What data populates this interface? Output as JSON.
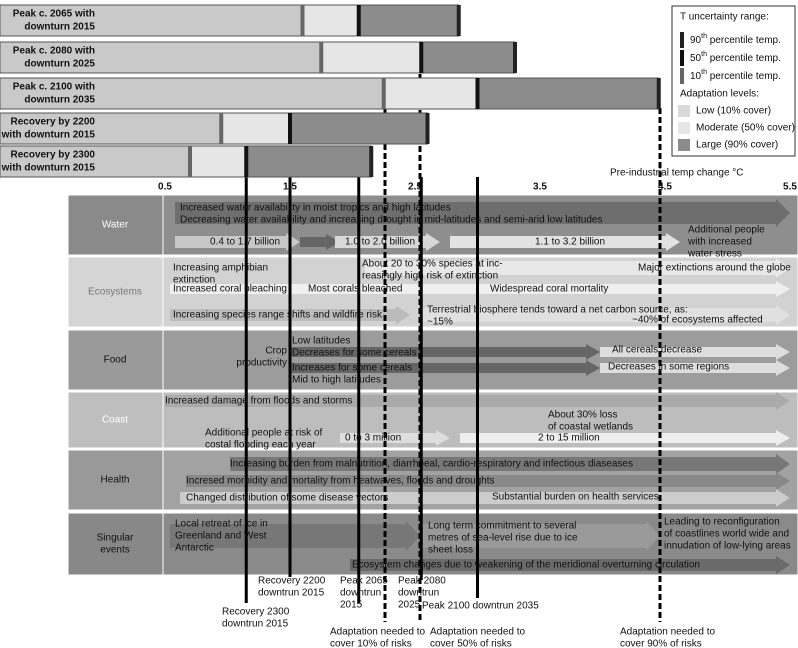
{
  "scenarios": [
    {
      "label": [
        "Peak c. 2065 with",
        "downturn 2015"
      ],
      "p10": 1.6,
      "p50": 2.05,
      "p90": 2.85
    },
    {
      "label": [
        "Peak c. 2080 with",
        "downturn 2025"
      ],
      "p10": 1.75,
      "p50": 2.55,
      "p90": 3.3
    },
    {
      "label": [
        "Peak c. 2100 with",
        "downturn 2035"
      ],
      "p10": 2.25,
      "p50": 3.0,
      "p90": 4.45
    },
    {
      "label": [
        "Recovery by 2200",
        "with downturn 2015"
      ],
      "p10": 0.95,
      "p50": 1.5,
      "p90": 2.6
    },
    {
      "label": [
        "Recovery by 2300",
        "with downturn 2015"
      ],
      "p10": 0.7,
      "p50": 1.15,
      "p90": 2.15
    }
  ],
  "legend": {
    "title": "T uncertainty range:",
    "percentiles": [
      {
        "num": "90",
        "sup": "th",
        "rest": " percentile temp."
      },
      {
        "num": "50",
        "sup": "th",
        "rest": " percentile temp."
      },
      {
        "num": "10",
        "sup": "th",
        "rest": " percentile temp."
      }
    ],
    "adaptation_title": "Adaptation levels:",
    "adaptation": [
      "Low (10% cover)",
      "Moderate (50% cover)",
      "Large (90% cover)"
    ]
  },
  "axis": {
    "label": "Pre-industrial temp change °C",
    "ticks": [
      0.5,
      1.5,
      2.5,
      3.5,
      4.5,
      5.5
    ]
  },
  "sectors": [
    {
      "name": [
        "Water"
      ],
      "items": [
        {
          "lines": [
            "Increased water availability in moist tropics and high latitudes"
          ]
        },
        {
          "lines": [
            "Decreasing water availability and increasing drought in mid-latitudes and semi-arid low latitudes"
          ]
        },
        {
          "lines": [
            "0.4 to 1.7 billion"
          ]
        },
        {
          "lines": [
            "1.0 to 2.0 billion"
          ]
        },
        {
          "lines": [
            "1.1 to 3.2 billion"
          ]
        },
        {
          "lines": [
            "Additional people",
            "with increased",
            "water stress"
          ]
        }
      ]
    },
    {
      "name": [
        "Ecosystems"
      ],
      "items": [
        {
          "lines": [
            "Increasing amphibian",
            "extinction"
          ]
        },
        {
          "lines": [
            "About 20 to 30% species at inc-",
            "reasingly high risk of extinction"
          ]
        },
        {
          "lines": [
            "Major extinctions around the globe"
          ]
        },
        {
          "lines": [
            "Increased coral bleaching"
          ]
        },
        {
          "lines": [
            "Most corals bleached"
          ]
        },
        {
          "lines": [
            "Widespread coral mortality"
          ]
        },
        {
          "lines": [
            "Terrestrial biosphere tends toward a net carbon source, as:",
            "~15%"
          ]
        },
        {
          "lines": [
            "~40% of ecosystems affected"
          ]
        },
        {
          "lines": [
            "Increasing species range shifts and wildfire risk"
          ]
        }
      ]
    },
    {
      "name": [
        "Food"
      ],
      "items": [
        {
          "lines": [
            "Crop",
            "productivity"
          ]
        },
        {
          "lines": [
            "Low latitudes",
            "Decreases for some cereals"
          ]
        },
        {
          "lines": [
            "Increases for some cereals",
            "Mid to high latitudes"
          ]
        },
        {
          "lines": [
            "All cereals decrease"
          ]
        },
        {
          "lines": [
            "Decreases in some regions"
          ]
        }
      ]
    },
    {
      "name": [
        "Coast"
      ],
      "items": [
        {
          "lines": [
            "Increased damage from floods and storms"
          ]
        },
        {
          "lines": [
            "About 30% loss",
            "of coastal wetlands"
          ]
        },
        {
          "lines": [
            "Additional people at risk of",
            "costal flooding each year"
          ]
        },
        {
          "lines": [
            "0 to 3 million"
          ]
        },
        {
          "lines": [
            "2 to 15 million"
          ]
        }
      ]
    },
    {
      "name": [
        "Health"
      ],
      "items": [
        {
          "lines": [
            "Increasing burden from malnutrition, diarrhoeal, cardio-respiratory and infectious diaseases"
          ]
        },
        {
          "lines": [
            "Incresed morbidity and mortality from heatwaves, floods and droughts"
          ]
        },
        {
          "lines": [
            "Changed distribution of some disease vectors"
          ]
        },
        {
          "lines": [
            "Substantial burden on health services"
          ]
        }
      ]
    },
    {
      "name": [
        "Singular",
        "events"
      ],
      "items": [
        {
          "lines": [
            "Local retreat of ice in",
            "Greenland and West",
            "Antarctic"
          ]
        },
        {
          "lines": [
            "Long term commitment to several",
            "metres of sea-level rise due to ice",
            "sheet loss"
          ]
        },
        {
          "lines": [
            "Leading to reconfiguration",
            "of coastlines world wide and",
            "innudation of low-lying areas"
          ]
        },
        {
          "lines": [
            "Ecosystem changes due to weakening of the meridional overturning circulation"
          ]
        }
      ]
    }
  ],
  "markers": [
    {
      "lines": [
        "Recovery 2200",
        "downtrun 2015"
      ]
    },
    {
      "lines": [
        "Recovery 2300",
        "downtrun 2015"
      ]
    },
    {
      "lines": [
        "Peak 2065",
        "downtrun",
        "2015"
      ]
    },
    {
      "lines": [
        "Peak 2080",
        "downtrun",
        "2025"
      ]
    },
    {
      "lines": [
        "Peak 2100 downtrun 2035"
      ]
    },
    {
      "lines": [
        "Adaptation needed to",
        "cover 10% of risks"
      ]
    },
    {
      "lines": [
        "Adaptation needed to",
        "cover 50% of risks"
      ]
    },
    {
      "lines": [
        "Adaptation needed to",
        "cover 90% of risks"
      ]
    }
  ]
}
